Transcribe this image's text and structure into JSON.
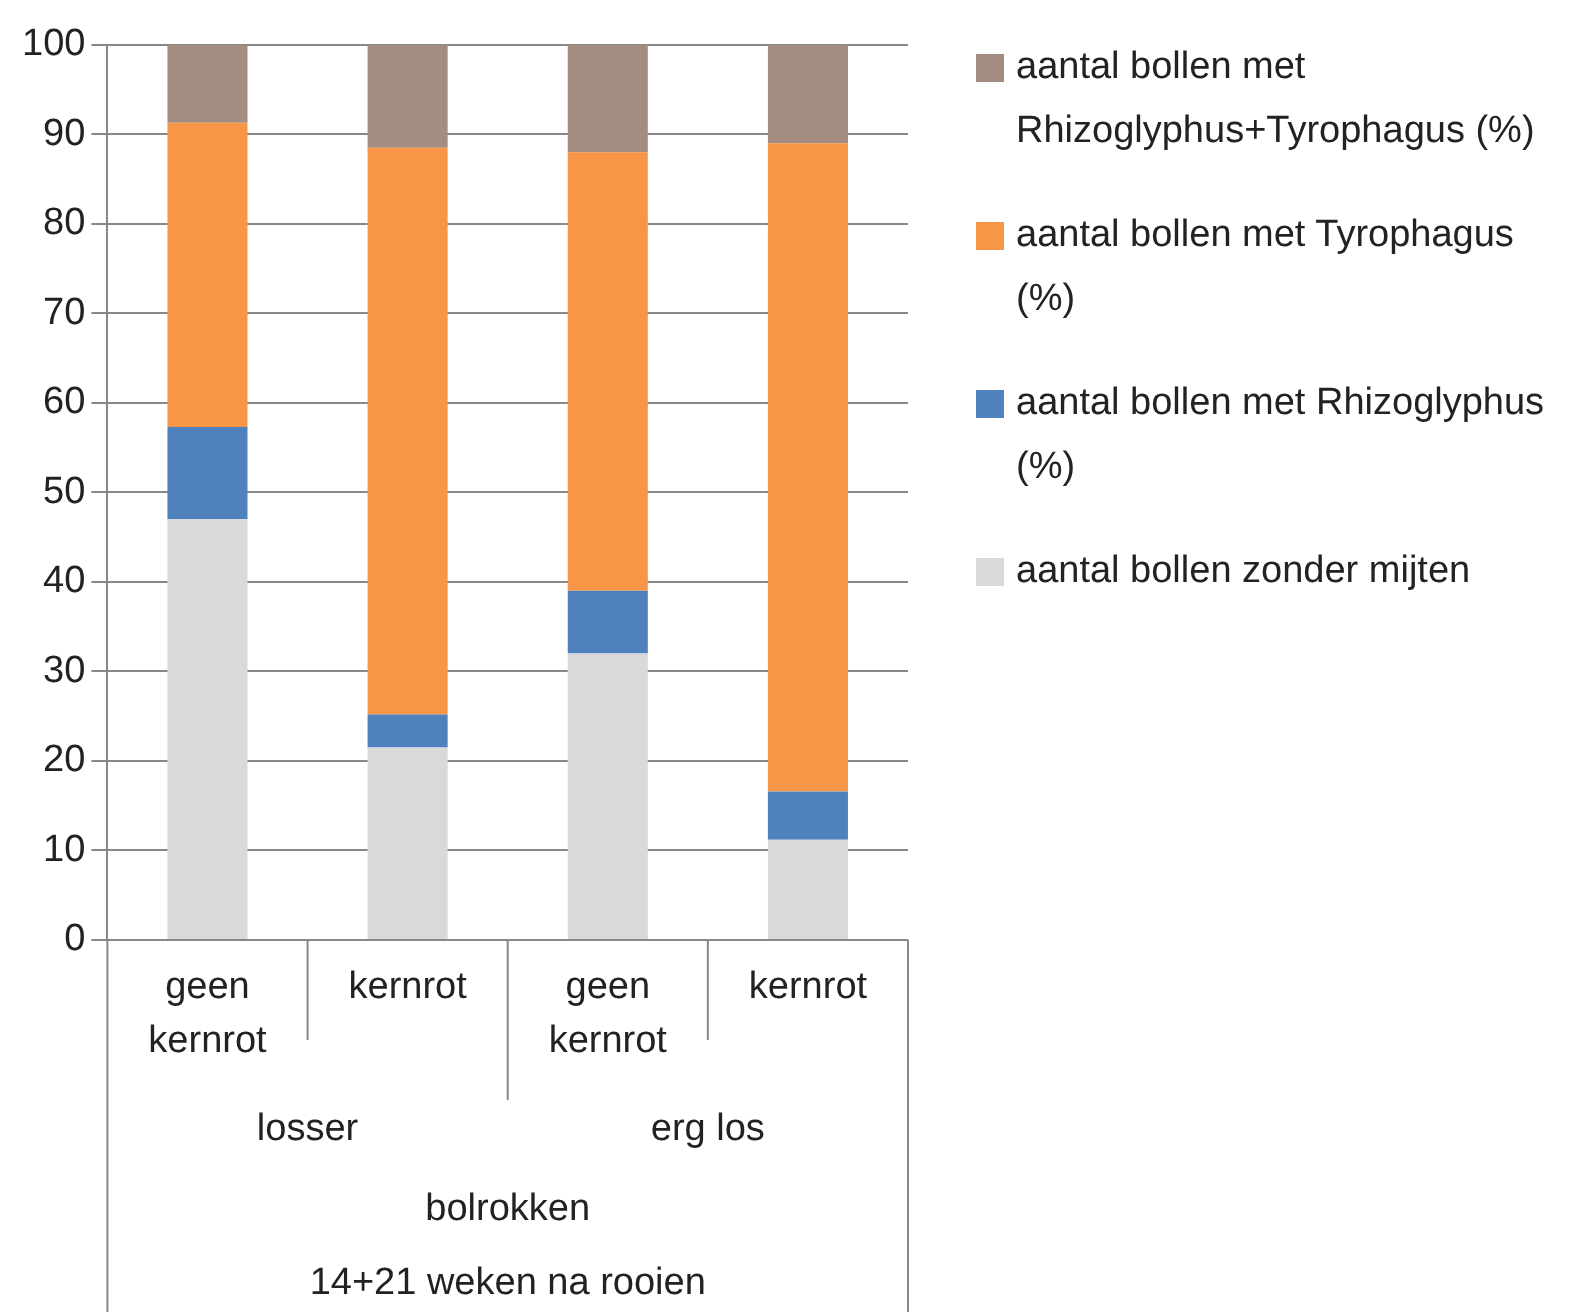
{
  "chart_data": {
    "type": "bar",
    "stacked": true,
    "categories": [
      "geen kernrot",
      "kernrot",
      "geen kernrot",
      "kernrot"
    ],
    "series": [
      {
        "name": "aantal bollen zonder mijten",
        "color": "#d9d9d9",
        "values": [
          47,
          21.5,
          32,
          11.2
        ]
      },
      {
        "name": "aantal bollen met Rhizoglyphus (%)",
        "color": "#4f81bd",
        "values": [
          10.3,
          3.7,
          7,
          5.4
        ]
      },
      {
        "name": "aantal bollen met Tyrophagus (%)",
        "color": "#f79646",
        "values": [
          34,
          63.3,
          49,
          72.4
        ]
      },
      {
        "name": "aantal bollen met Rhizoglyphus+Tyrophagus (%)",
        "color": "#a38c82",
        "values": [
          8.7,
          11.5,
          12,
          11
        ]
      }
    ],
    "annotations": [
      "losser",
      "erg los",
      "bolrokken",
      "14+21 weken na rooien"
    ],
    "ylim": [
      0,
      100
    ],
    "yticks": [
      0,
      10,
      20,
      30,
      40,
      50,
      60,
      70,
      80,
      90,
      100
    ],
    "grid": "y",
    "legend": "right"
  }
}
